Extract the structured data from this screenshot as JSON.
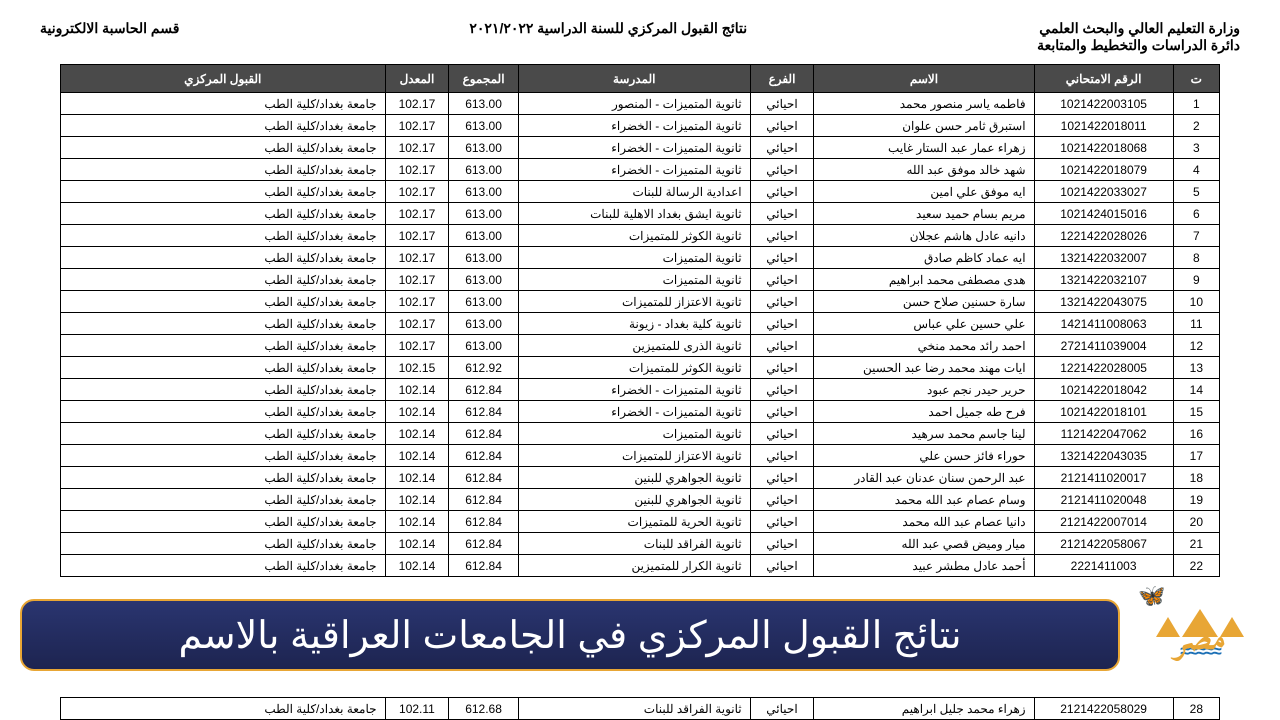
{
  "header": {
    "ministry": "وزارة التعليم العالي والبحث العلمي",
    "dept": "دائرة الدراسات والتخطيط والمتابعة",
    "title": "نتائج القبول المركزي للسنة الدراسية ٢٠٢١/٢٠٢٢",
    "section": "قسم الحاسبة الالكترونية"
  },
  "columns": [
    "ت",
    "الرقم الامتحاني",
    "الاسم",
    "الفرع",
    "المدرسة",
    "المجموع",
    "المعدل",
    "القبول المركزي"
  ],
  "rows": [
    [
      "1",
      "1021422003105",
      "فاطمه ياسر منصور محمد",
      "احيائي",
      "ثانوية المتميزات - المنصور",
      "613.00",
      "102.17",
      "جامعة بغداد/كلية الطب"
    ],
    [
      "2",
      "1021422018011",
      "استبرق ثامر حسن علوان",
      "احيائي",
      "ثانوية المتميزات - الخضراء",
      "613.00",
      "102.17",
      "جامعة بغداد/كلية الطب"
    ],
    [
      "3",
      "1021422018068",
      "زهراء عمار عبد الستار غايب",
      "احيائي",
      "ثانوية المتميزات - الخضراء",
      "613.00",
      "102.17",
      "جامعة بغداد/كلية الطب"
    ],
    [
      "4",
      "1021422018079",
      "شهد خالد موفق عبد الله",
      "احيائي",
      "ثانوية المتميزات - الخضراء",
      "613.00",
      "102.17",
      "جامعة بغداد/كلية الطب"
    ],
    [
      "5",
      "1021422033027",
      "ايه موفق علي امين",
      "احيائي",
      "اعدادية الرسالة للبنات",
      "613.00",
      "102.17",
      "جامعة بغداد/كلية الطب"
    ],
    [
      "6",
      "1021424015016",
      "مريم بسام حميد سعيد",
      "احيائي",
      "ثانوية ايشق بغداد الاهلية للبنات",
      "613.00",
      "102.17",
      "جامعة بغداد/كلية الطب"
    ],
    [
      "7",
      "1221422028026",
      "دانيه عادل هاشم عجلان",
      "احيائي",
      "ثانوية الكوثر للمتميزات",
      "613.00",
      "102.17",
      "جامعة بغداد/كلية الطب"
    ],
    [
      "8",
      "1321422032007",
      "ايه عماد كاظم صادق",
      "احيائي",
      "ثانوية المتميزات",
      "613.00",
      "102.17",
      "جامعة بغداد/كلية الطب"
    ],
    [
      "9",
      "1321422032107",
      "هدى مصطفى محمد ابراهيم",
      "احيائي",
      "ثانوية المتميزات",
      "613.00",
      "102.17",
      "جامعة بغداد/كلية الطب"
    ],
    [
      "10",
      "1321422043075",
      "سارة حسنين صلاح حسن",
      "احيائي",
      "ثانوية الاعتزاز للمتميزات",
      "613.00",
      "102.17",
      "جامعة بغداد/كلية الطب"
    ],
    [
      "11",
      "1421411008063",
      "علي حسين علي عباس",
      "احيائي",
      "ثانوية كلية بغداد - زيونة",
      "613.00",
      "102.17",
      "جامعة بغداد/كلية الطب"
    ],
    [
      "12",
      "2721411039004",
      "احمد رائد محمد منخي",
      "احيائي",
      "ثانوية الذرى للمتميزين",
      "613.00",
      "102.17",
      "جامعة بغداد/كلية الطب"
    ],
    [
      "13",
      "1221422028005",
      "ايات مهند محمد رضا عبد الحسين",
      "احيائي",
      "ثانوية الكوثر للمتميزات",
      "612.92",
      "102.15",
      "جامعة بغداد/كلية الطب"
    ],
    [
      "14",
      "1021422018042",
      "حرير حيدر نجم عبود",
      "احيائي",
      "ثانوية المتميزات - الخضراء",
      "612.84",
      "102.14",
      "جامعة بغداد/كلية الطب"
    ],
    [
      "15",
      "1021422018101",
      "فرح طه جميل احمد",
      "احيائي",
      "ثانوية المتميزات - الخضراء",
      "612.84",
      "102.14",
      "جامعة بغداد/كلية الطب"
    ],
    [
      "16",
      "1121422047062",
      "لينا جاسم محمد سرهيد",
      "احيائي",
      "ثانوية المتميزات",
      "612.84",
      "102.14",
      "جامعة بغداد/كلية الطب"
    ],
    [
      "17",
      "1321422043035",
      "حوراء فائز حسن علي",
      "احيائي",
      "ثانوية الاعتزاز للمتميزات",
      "612.84",
      "102.14",
      "جامعة بغداد/كلية الطب"
    ],
    [
      "18",
      "2121411020017",
      "عبد الرحمن سنان عدنان عبد القادر",
      "احيائي",
      "ثانوية الجواهري للبنين",
      "612.84",
      "102.14",
      "جامعة بغداد/كلية الطب"
    ],
    [
      "19",
      "2121411020048",
      "وسام عصام عبد الله محمد",
      "احيائي",
      "ثانوية الجواهري للبنين",
      "612.84",
      "102.14",
      "جامعة بغداد/كلية الطب"
    ],
    [
      "20",
      "2121422007014",
      "دانيا عصام عبد الله محمد",
      "احيائي",
      "ثانوية الحرية للمتميزات",
      "612.84",
      "102.14",
      "جامعة بغداد/كلية الطب"
    ],
    [
      "21",
      "2121422058067",
      "ميار وميض قصي عبد الله",
      "احيائي",
      "ثانوية الفراقد للبنات",
      "612.84",
      "102.14",
      "جامعة بغداد/كلية الطب"
    ],
    [
      "22",
      "2221411003",
      "أحمد عادل مطشر عبيد",
      "احيائي",
      "ثانوية الكرار للمتميزين",
      "612.84",
      "102.14",
      "جامعة بغداد/كلية الطب"
    ]
  ],
  "bottom_row": [
    "28",
    "2121422058029",
    "زهراء محمد جليل ابراهيم",
    "احيائي",
    "ثانوية الفراقد للبنات",
    "612.68",
    "102.11",
    "جامعة بغداد/كلية الطب"
  ],
  "banner": {
    "title": "نتائج القبول المركزي في الجامعات العراقية بالاسم"
  },
  "style": {
    "header_bg": "#4a4a4a",
    "banner_bg_top": "#2a3570",
    "banner_bg_bottom": "#1d2450",
    "banner_border": "#e8a635",
    "banner_text": "#ffffff",
    "pyramid_color": "#e8a635",
    "wave_color": "#1b6fb5"
  }
}
